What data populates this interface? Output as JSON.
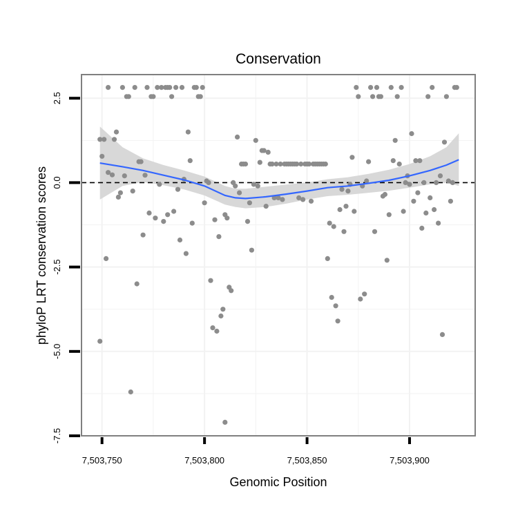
{
  "chart_data": {
    "type": "scatter",
    "title": "Conservation",
    "xlabel": "Genomic Position",
    "ylabel": "phyloP LRT conservation scores",
    "xlim": [
      7503740,
      7503932
    ],
    "ylim": [
      -7.5,
      3.2
    ],
    "x_ticks": [
      7503750,
      7503800,
      7503850,
      7503900
    ],
    "x_tick_labels": [
      "7,503,750",
      "7,503,800",
      "7,503,850",
      "7,503,900"
    ],
    "y_ticks": [
      -7.5,
      -5.0,
      -2.5,
      0.0,
      2.5
    ],
    "y_tick_labels": [
      "-7.5",
      "-5.0",
      "-2.5",
      "0.0",
      "2.5"
    ],
    "reference_line": {
      "y": 0,
      "style": "dashed",
      "color": "#000000"
    },
    "grid": true,
    "colors": {
      "points": "#8c8c8c",
      "smooth": "#3366ff",
      "band": "#d4d4d4",
      "panel_border": "#7f7f7f",
      "grid": "#f2f2f2"
    },
    "points": [
      [
        7503749,
        1.28
      ],
      [
        7503749,
        -4.7
      ],
      [
        7503750,
        0.78
      ],
      [
        7503751,
        1.28
      ],
      [
        7503752,
        -2.25
      ],
      [
        7503753,
        2.82
      ],
      [
        7503753,
        0.3
      ],
      [
        7503755,
        0.23
      ],
      [
        7503756,
        1.28
      ],
      [
        7503757,
        1.5
      ],
      [
        7503758,
        -0.43
      ],
      [
        7503759,
        -0.3
      ],
      [
        7503760,
        2.82
      ],
      [
        7503761,
        0.2
      ],
      [
        7503762,
        2.55
      ],
      [
        7503763,
        2.55
      ],
      [
        7503764,
        -6.2
      ],
      [
        7503765,
        -0.25
      ],
      [
        7503766,
        2.82
      ],
      [
        7503767,
        -3.0
      ],
      [
        7503768,
        0.62
      ],
      [
        7503769,
        0.62
      ],
      [
        7503770,
        -1.55
      ],
      [
        7503771,
        0.22
      ],
      [
        7503772,
        2.82
      ],
      [
        7503773,
        -0.9
      ],
      [
        7503774,
        2.55
      ],
      [
        7503775,
        2.55
      ],
      [
        7503776,
        -1.05
      ],
      [
        7503777,
        2.82
      ],
      [
        7503778,
        -0.05
      ],
      [
        7503779,
        2.82
      ],
      [
        7503780,
        -1.15
      ],
      [
        7503781,
        2.82
      ],
      [
        7503782,
        -0.95
      ],
      [
        7503782,
        2.82
      ],
      [
        7503783,
        2.82
      ],
      [
        7503784,
        2.55
      ],
      [
        7503785,
        -0.85
      ],
      [
        7503786,
        2.82
      ],
      [
        7503787,
        -0.2
      ],
      [
        7503788,
        -1.7
      ],
      [
        7503789,
        2.82
      ],
      [
        7503790,
        0.1
      ],
      [
        7503791,
        -2.1
      ],
      [
        7503792,
        1.5
      ],
      [
        7503793,
        0.65
      ],
      [
        7503794,
        -1.2
      ],
      [
        7503795,
        2.82
      ],
      [
        7503796,
        2.82
      ],
      [
        7503797,
        2.55
      ],
      [
        7503798,
        2.55
      ],
      [
        7503799,
        2.82
      ],
      [
        7503800,
        -0.6
      ],
      [
        7503801,
        0.05
      ],
      [
        7503802,
        0.0
      ],
      [
        7503803,
        -2.9
      ],
      [
        7503804,
        -4.3
      ],
      [
        7503805,
        -1.1
      ],
      [
        7503806,
        -4.4
      ],
      [
        7503807,
        -1.6
      ],
      [
        7503808,
        -3.95
      ],
      [
        7503809,
        -3.75
      ],
      [
        7503810,
        -7.1
      ],
      [
        7503810,
        -0.95
      ],
      [
        7503811,
        -1.05
      ],
      [
        7503812,
        -3.1
      ],
      [
        7503813,
        -3.2
      ],
      [
        7503814,
        0.0
      ],
      [
        7503815,
        -0.1
      ],
      [
        7503816,
        1.35
      ],
      [
        7503817,
        -0.3
      ],
      [
        7503818,
        0.55
      ],
      [
        7503819,
        0.55
      ],
      [
        7503820,
        0.55
      ],
      [
        7503821,
        -1.15
      ],
      [
        7503822,
        -0.6
      ],
      [
        7503823,
        -2.0
      ],
      [
        7503824,
        -0.05
      ],
      [
        7503825,
        1.25
      ],
      [
        7503826,
        -0.1
      ],
      [
        7503827,
        0.6
      ],
      [
        7503828,
        0.95
      ],
      [
        7503829,
        0.95
      ],
      [
        7503830,
        -0.7
      ],
      [
        7503831,
        0.9
      ],
      [
        7503832,
        0.55
      ],
      [
        7503833,
        0.55
      ],
      [
        7503834,
        -0.45
      ],
      [
        7503835,
        0.55
      ],
      [
        7503836,
        -0.45
      ],
      [
        7503837,
        0.55
      ],
      [
        7503838,
        -0.5
      ],
      [
        7503839,
        0.55
      ],
      [
        7503840,
        0.55
      ],
      [
        7503841,
        0.55
      ],
      [
        7503842,
        0.55
      ],
      [
        7503843,
        0.55
      ],
      [
        7503844,
        0.55
      ],
      [
        7503845,
        0.55
      ],
      [
        7503846,
        -0.45
      ],
      [
        7503847,
        0.55
      ],
      [
        7503848,
        -0.5
      ],
      [
        7503849,
        0.55
      ],
      [
        7503850,
        0.55
      ],
      [
        7503851,
        0.55
      ],
      [
        7503852,
        -0.55
      ],
      [
        7503853,
        0.55
      ],
      [
        7503854,
        0.55
      ],
      [
        7503855,
        0.55
      ],
      [
        7503856,
        0.55
      ],
      [
        7503857,
        0.55
      ],
      [
        7503858,
        0.55
      ],
      [
        7503859,
        0.55
      ],
      [
        7503860,
        -2.25
      ],
      [
        7503861,
        -1.2
      ],
      [
        7503862,
        -3.4
      ],
      [
        7503863,
        -1.3
      ],
      [
        7503864,
        -3.65
      ],
      [
        7503865,
        -4.1
      ],
      [
        7503866,
        -0.8
      ],
      [
        7503867,
        -0.2
      ],
      [
        7503868,
        -1.45
      ],
      [
        7503869,
        -0.7
      ],
      [
        7503870,
        -0.25
      ],
      [
        7503871,
        -0.05
      ],
      [
        7503872,
        0.75
      ],
      [
        7503873,
        -0.85
      ],
      [
        7503874,
        2.82
      ],
      [
        7503875,
        2.55
      ],
      [
        7503876,
        -3.45
      ],
      [
        7503877,
        -0.1
      ],
      [
        7503878,
        -3.3
      ],
      [
        7503879,
        0.05
      ],
      [
        7503880,
        0.62
      ],
      [
        7503881,
        2.82
      ],
      [
        7503882,
        2.55
      ],
      [
        7503883,
        -1.45
      ],
      [
        7503884,
        2.82
      ],
      [
        7503885,
        2.55
      ],
      [
        7503886,
        2.55
      ],
      [
        7503887,
        -0.4
      ],
      [
        7503888,
        -0.35
      ],
      [
        7503889,
        -2.3
      ],
      [
        7503890,
        -0.95
      ],
      [
        7503891,
        2.82
      ],
      [
        7503892,
        0.65
      ],
      [
        7503893,
        1.25
      ],
      [
        7503894,
        2.55
      ],
      [
        7503895,
        0.55
      ],
      [
        7503896,
        2.82
      ],
      [
        7503897,
        -0.85
      ],
      [
        7503898,
        0.0
      ],
      [
        7503899,
        0.2
      ],
      [
        7503900,
        -0.05
      ],
      [
        7503901,
        1.45
      ],
      [
        7503902,
        -0.55
      ],
      [
        7503903,
        0.65
      ],
      [
        7503904,
        -0.3
      ],
      [
        7503905,
        0.65
      ],
      [
        7503906,
        -1.35
      ],
      [
        7503907,
        0.0
      ],
      [
        7503908,
        -0.9
      ],
      [
        7503909,
        2.55
      ],
      [
        7503910,
        -0.45
      ],
      [
        7503911,
        2.82
      ],
      [
        7503912,
        -0.8
      ],
      [
        7503913,
        0.0
      ],
      [
        7503914,
        -1.2
      ],
      [
        7503915,
        0.2
      ],
      [
        7503916,
        -4.5
      ],
      [
        7503917,
        1.2
      ],
      [
        7503918,
        2.55
      ],
      [
        7503919,
        0.05
      ],
      [
        7503920,
        -0.55
      ],
      [
        7503921,
        0.0
      ],
      [
        7503922,
        2.82
      ],
      [
        7503923,
        2.82
      ]
    ],
    "smooth": {
      "x": [
        7503749,
        7503760,
        7503770,
        7503780,
        7503790,
        7503800,
        7503810,
        7503815,
        7503820,
        7503830,
        7503840,
        7503850,
        7503860,
        7503870,
        7503880,
        7503890,
        7503900,
        7503910,
        7503918,
        7503924
      ],
      "y": [
        0.58,
        0.47,
        0.36,
        0.22,
        0.08,
        -0.1,
        -0.38,
        -0.45,
        -0.47,
        -0.42,
        -0.34,
        -0.25,
        -0.15,
        -0.1,
        -0.02,
        0.07,
        0.2,
        0.36,
        0.52,
        0.68
      ],
      "lower": [
        -0.5,
        -0.1,
        0.02,
        -0.08,
        -0.2,
        -0.38,
        -0.65,
        -0.72,
        -0.76,
        -0.72,
        -0.62,
        -0.5,
        -0.4,
        -0.36,
        -0.3,
        -0.24,
        -0.15,
        -0.05,
        0.0,
        -0.1
      ],
      "upper": [
        1.66,
        1.05,
        0.72,
        0.52,
        0.36,
        0.18,
        -0.1,
        -0.18,
        -0.18,
        -0.12,
        -0.06,
        0.0,
        0.1,
        0.16,
        0.26,
        0.38,
        0.55,
        0.78,
        1.05,
        1.46
      ]
    }
  }
}
